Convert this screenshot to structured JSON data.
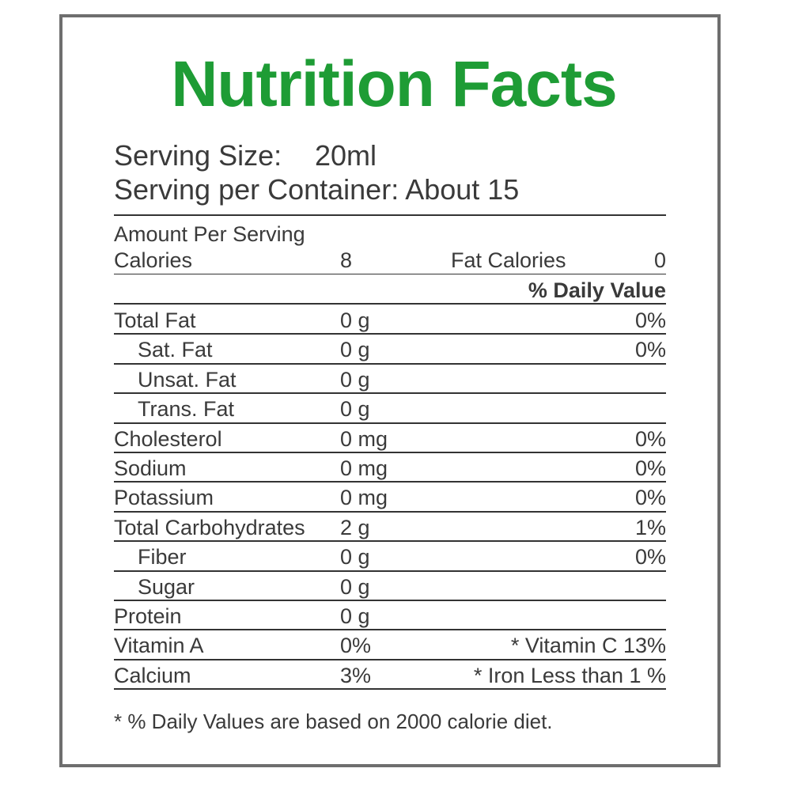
{
  "title": "Nutrition Facts",
  "serving": {
    "size_label": "Serving Size:",
    "size_value": "20ml",
    "container_text": "Serving per Container: About 15"
  },
  "amount_per_serving": "Amount Per Serving",
  "calories": {
    "label": "Calories",
    "value": "8",
    "fat_label": "Fat Calories",
    "fat_value": "0"
  },
  "daily_value_header": "% Daily Value",
  "rows": [
    {
      "name": "Total Fat",
      "amount": "0 g",
      "dv": "0%"
    },
    {
      "name": "Sat. Fat",
      "amount": "0 g",
      "dv": "0%"
    },
    {
      "name": "Unsat. Fat",
      "amount": "0 g",
      "dv": ""
    },
    {
      "name": "Trans. Fat",
      "amount": "0 g",
      "dv": ""
    },
    {
      "name": "Cholesterol",
      "amount": "0 mg",
      "dv": "0%"
    },
    {
      "name": "Sodium",
      "amount": "0 mg",
      "dv": "0%"
    },
    {
      "name": "Potassium",
      "amount": "0 mg",
      "dv": "0%"
    },
    {
      "name": "Total Carbohydrates",
      "amount": "2 g",
      "dv": "1%"
    },
    {
      "name": "Fiber",
      "amount": "0 g",
      "dv": "0%"
    },
    {
      "name": "Sugar",
      "amount": "0 g",
      "dv": ""
    },
    {
      "name": "Protein",
      "amount": "0 g",
      "dv": ""
    },
    {
      "name": "Vitamin A",
      "amount": "0%",
      "dv": "* Vitamin C 13%"
    },
    {
      "name": "Calcium",
      "amount": "3%",
      "dv": "* Iron Less than 1 %"
    }
  ],
  "footnote": "* % Daily Values are based on 2000 calorie diet.",
  "colors": {
    "title": "#1e9c35",
    "border": "#6e6e6e",
    "text": "#3a3a3a"
  }
}
